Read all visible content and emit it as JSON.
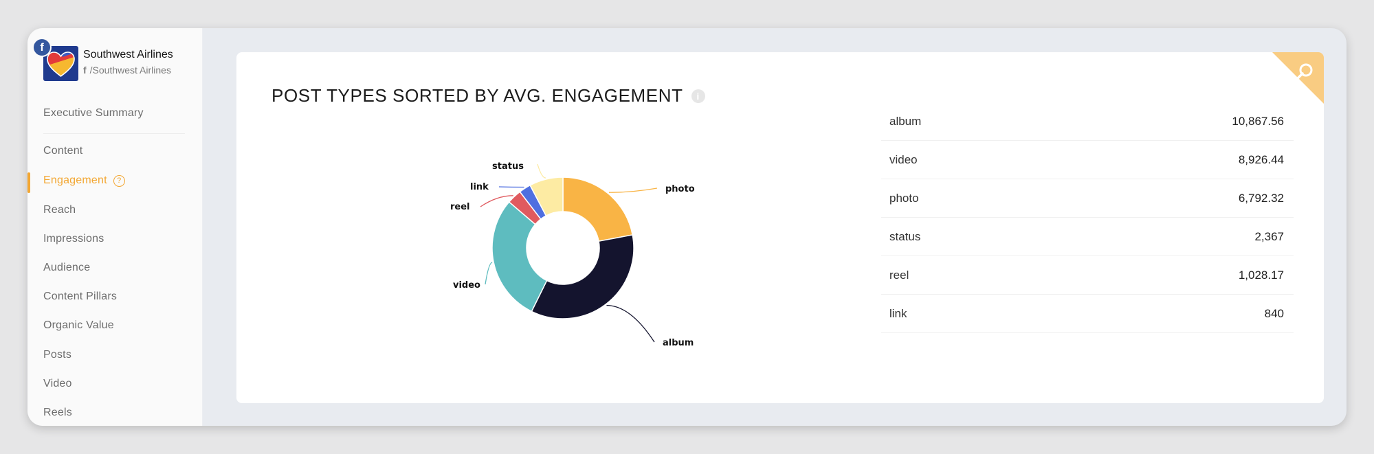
{
  "brand": {
    "name": "Southwest Airlines",
    "handle": "/Southwest Airlines",
    "social_badge": "f"
  },
  "sidebar": {
    "items": [
      {
        "label": "Executive Summary"
      },
      {
        "label": "Content"
      },
      {
        "label": "Engagement",
        "active": true
      },
      {
        "label": "Reach"
      },
      {
        "label": "Impressions"
      },
      {
        "label": "Audience"
      },
      {
        "label": "Content Pillars"
      },
      {
        "label": "Organic Value"
      },
      {
        "label": "Posts"
      },
      {
        "label": "Video"
      },
      {
        "label": "Reels"
      }
    ]
  },
  "card": {
    "title": "POST TYPES SORTED BY AVG. ENGAGEMENT",
    "info_icon": "i",
    "search_icon": "search-icon"
  },
  "colors": {
    "accent": "#f3a733",
    "photo": "#f9b445",
    "album": "#14142e",
    "video": "#5ebcbf",
    "reel": "#e05a5f",
    "link": "#4f6fe0",
    "status": "#fdeba3",
    "corner": "#f9cc82"
  },
  "table": {
    "rows": [
      {
        "type": "album",
        "value": "10,867.56"
      },
      {
        "type": "video",
        "value": "8,926.44"
      },
      {
        "type": "photo",
        "value": "6,792.32"
      },
      {
        "type": "status",
        "value": "2,367"
      },
      {
        "type": "reel",
        "value": "1,028.17"
      },
      {
        "type": "link",
        "value": "840"
      }
    ]
  },
  "chart_data": {
    "type": "pie",
    "donut": true,
    "slices": [
      {
        "label": "photo",
        "value": 6792.32
      },
      {
        "label": "album",
        "value": 10867.56
      },
      {
        "label": "video",
        "value": 8926.44
      },
      {
        "label": "reel",
        "value": 1028.17
      },
      {
        "label": "link",
        "value": 840
      },
      {
        "label": "status",
        "value": 2367
      }
    ]
  }
}
